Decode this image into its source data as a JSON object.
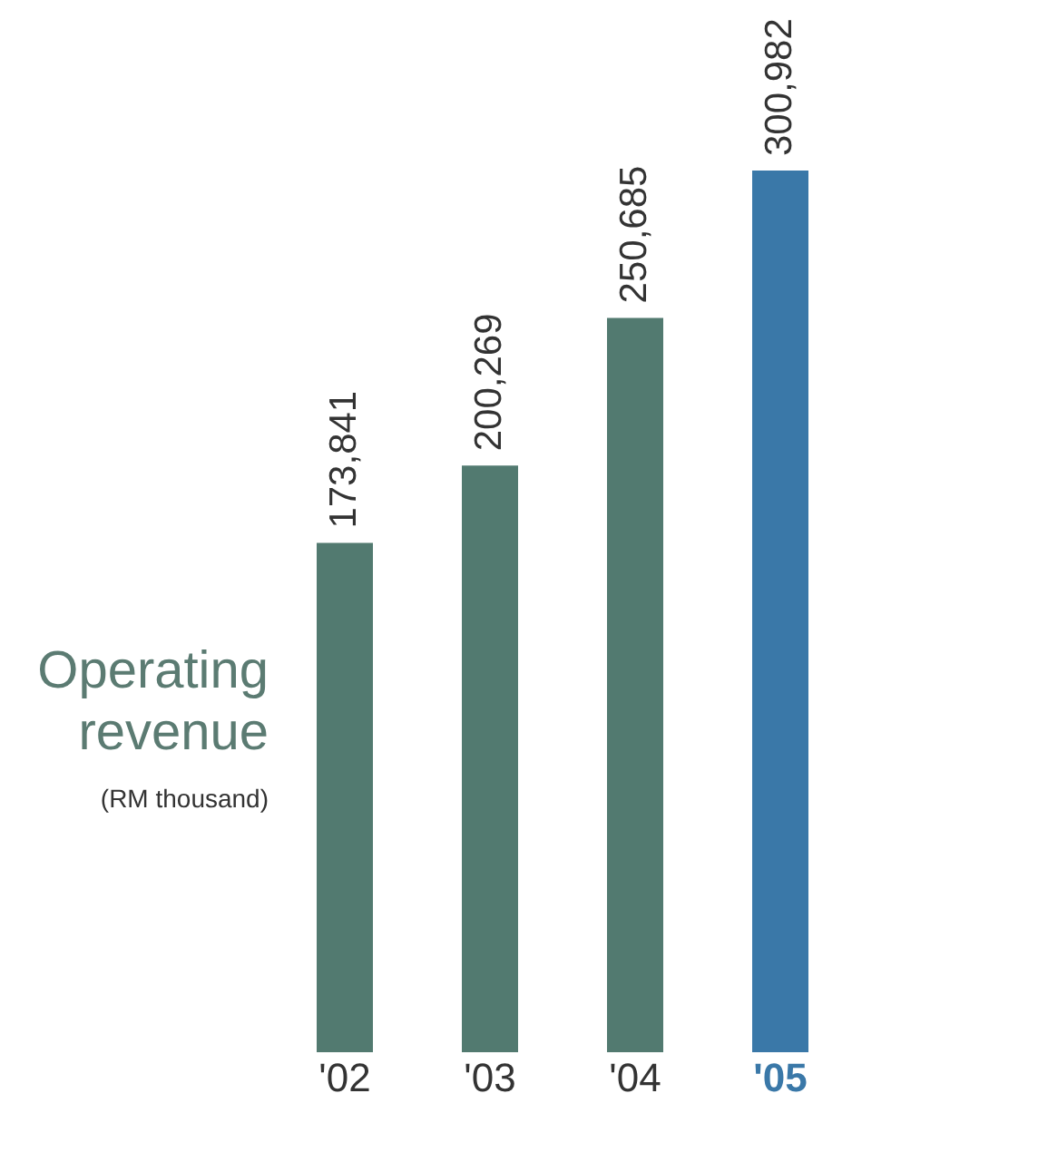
{
  "chart_data": {
    "type": "bar",
    "title": "Operating revenue",
    "subtitle": "(RM thousand)",
    "categories": [
      "'02",
      "'03",
      "'04",
      "'05"
    ],
    "values": [
      173841,
      200269,
      250685,
      300982
    ],
    "colors": [
      "#527a70",
      "#527a70",
      "#527a70",
      "#3a78a8"
    ],
    "value_labels": [
      "173,841",
      "200,269",
      "250,685",
      "300,982"
    ],
    "grid": false
  }
}
